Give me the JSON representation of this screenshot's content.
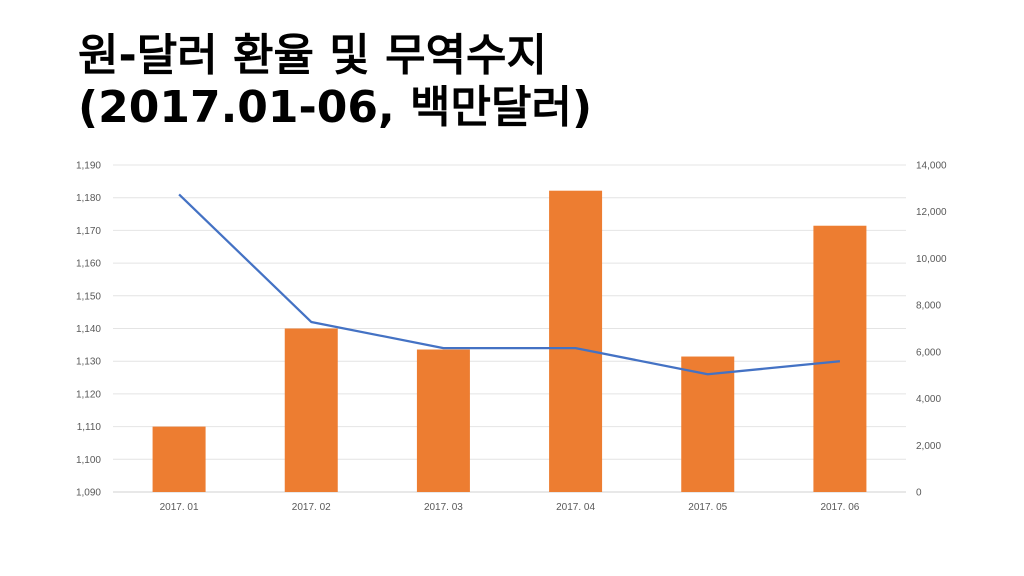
{
  "title": {
    "line1": "원-달러 환율 및 무역수지",
    "line2": "(2017.01-06, 백만달러)"
  },
  "chart_data": {
    "type": "bar",
    "categories": [
      "2017. 01",
      "2017. 02",
      "2017. 03",
      "2017. 04",
      "2017. 05",
      "2017. 06"
    ],
    "series": [
      {
        "name": "무역수지",
        "type": "bar",
        "axis": "right",
        "color": "#ED7D31",
        "values": [
          2800,
          7000,
          6100,
          12900,
          5800,
          11400
        ]
      },
      {
        "name": "원-달러 환율",
        "type": "line",
        "axis": "left",
        "color": "#4472C4",
        "values": [
          1181,
          1142,
          1134,
          1134,
          1126,
          1130
        ]
      }
    ],
    "y_left": {
      "min": 1090,
      "max": 1190,
      "step": 10,
      "ticks": [
        "1,090",
        "1,100",
        "1,110",
        "1,120",
        "1,130",
        "1,140",
        "1,150",
        "1,160",
        "1,170",
        "1,180",
        "1,190"
      ]
    },
    "y_right": {
      "min": 0,
      "max": 14000,
      "step": 2000,
      "ticks": [
        "0",
        "2,000",
        "4,000",
        "6,000",
        "8,000",
        "10,000",
        "12,000",
        "14,000"
      ]
    },
    "grid": true,
    "legend": "none"
  }
}
